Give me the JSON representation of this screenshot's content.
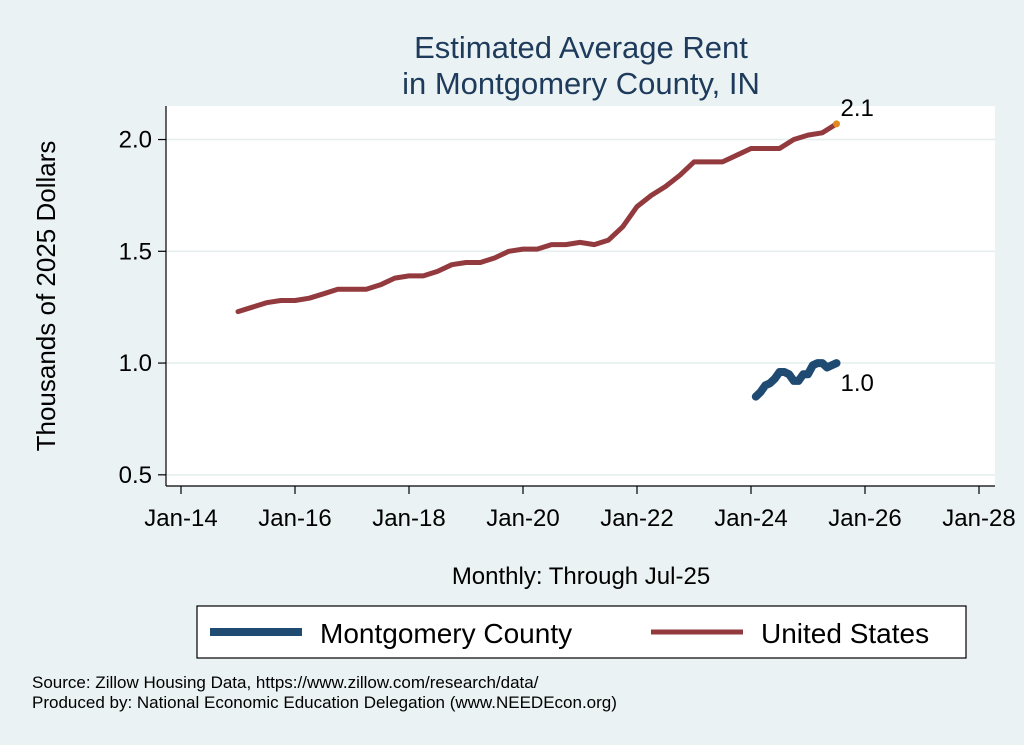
{
  "chart_data": {
    "type": "line",
    "title": [
      "Estimated Average Rent",
      "in Montgomery County, IN"
    ],
    "ylabel": "Thousands of 2025 Dollars",
    "xlabel": "Monthly: Through Jul-25",
    "ylim": [
      0.45,
      2.15
    ],
    "xlim": [
      "2014-01",
      "2028-01"
    ],
    "y_ticks": [
      {
        "value": 0.5,
        "label": "0.5"
      },
      {
        "value": 1.0,
        "label": "1.0"
      },
      {
        "value": 1.5,
        "label": "1.5"
      },
      {
        "value": 2.0,
        "label": "2.0"
      }
    ],
    "x_ticks": [
      {
        "date": "2014-01",
        "label": "Jan-14"
      },
      {
        "date": "2016-01",
        "label": "Jan-16"
      },
      {
        "date": "2018-01",
        "label": "Jan-18"
      },
      {
        "date": "2020-01",
        "label": "Jan-20"
      },
      {
        "date": "2022-01",
        "label": "Jan-22"
      },
      {
        "date": "2024-01",
        "label": "Jan-24"
      },
      {
        "date": "2026-01",
        "label": "Jan-26"
      },
      {
        "date": "2028-01",
        "label": "Jan-28"
      }
    ],
    "grid": true,
    "legend_position": "bottom",
    "series": [
      {
        "name": "Montgomery County",
        "color": "#1f4a72",
        "end_label": "1.0",
        "points": [
          [
            "2024-02",
            0.85
          ],
          [
            "2024-03",
            0.87
          ],
          [
            "2024-04",
            0.9
          ],
          [
            "2024-05",
            0.91
          ],
          [
            "2024-06",
            0.93
          ],
          [
            "2024-07",
            0.96
          ],
          [
            "2024-08",
            0.96
          ],
          [
            "2024-09",
            0.95
          ],
          [
            "2024-10",
            0.92
          ],
          [
            "2024-11",
            0.92
          ],
          [
            "2024-12",
            0.95
          ],
          [
            "2025-01",
            0.95
          ],
          [
            "2025-02",
            0.99
          ],
          [
            "2025-03",
            1.0
          ],
          [
            "2025-04",
            1.0
          ],
          [
            "2025-05",
            0.98
          ],
          [
            "2025-06",
            0.99
          ],
          [
            "2025-07",
            1.0
          ]
        ]
      },
      {
        "name": "United States",
        "color": "#933a3e",
        "end_label": "2.1",
        "end_marker_color": "#e08a1e",
        "points": [
          [
            "2015-01",
            1.23
          ],
          [
            "2015-04",
            1.25
          ],
          [
            "2015-07",
            1.27
          ],
          [
            "2015-10",
            1.28
          ],
          [
            "2016-01",
            1.28
          ],
          [
            "2016-04",
            1.29
          ],
          [
            "2016-07",
            1.31
          ],
          [
            "2016-10",
            1.33
          ],
          [
            "2017-01",
            1.33
          ],
          [
            "2017-04",
            1.33
          ],
          [
            "2017-07",
            1.35
          ],
          [
            "2017-10",
            1.38
          ],
          [
            "2018-01",
            1.39
          ],
          [
            "2018-04",
            1.39
          ],
          [
            "2018-07",
            1.41
          ],
          [
            "2018-10",
            1.44
          ],
          [
            "2019-01",
            1.45
          ],
          [
            "2019-04",
            1.45
          ],
          [
            "2019-07",
            1.47
          ],
          [
            "2019-10",
            1.5
          ],
          [
            "2020-01",
            1.51
          ],
          [
            "2020-04",
            1.51
          ],
          [
            "2020-07",
            1.53
          ],
          [
            "2020-10",
            1.53
          ],
          [
            "2021-01",
            1.54
          ],
          [
            "2021-04",
            1.53
          ],
          [
            "2021-07",
            1.55
          ],
          [
            "2021-10",
            1.61
          ],
          [
            "2022-01",
            1.7
          ],
          [
            "2022-04",
            1.75
          ],
          [
            "2022-07",
            1.79
          ],
          [
            "2022-10",
            1.84
          ],
          [
            "2023-01",
            1.9
          ],
          [
            "2023-04",
            1.9
          ],
          [
            "2023-07",
            1.9
          ],
          [
            "2023-10",
            1.93
          ],
          [
            "2024-01",
            1.96
          ],
          [
            "2024-04",
            1.96
          ],
          [
            "2024-07",
            1.96
          ],
          [
            "2024-10",
            2.0
          ],
          [
            "2025-01",
            2.02
          ],
          [
            "2025-04",
            2.03
          ],
          [
            "2025-07",
            2.07
          ]
        ]
      }
    ]
  },
  "legend": {
    "items": [
      {
        "label": "Montgomery County",
        "color": "#1f4a72"
      },
      {
        "label": "United States",
        "color": "#933a3e"
      }
    ]
  },
  "footer": {
    "source": "Source: Zillow Housing Data, https://www.zillow.com/research/data/",
    "produced": "Produced by: National Economic Education Delegation (www.NEEDEcon.org)"
  }
}
